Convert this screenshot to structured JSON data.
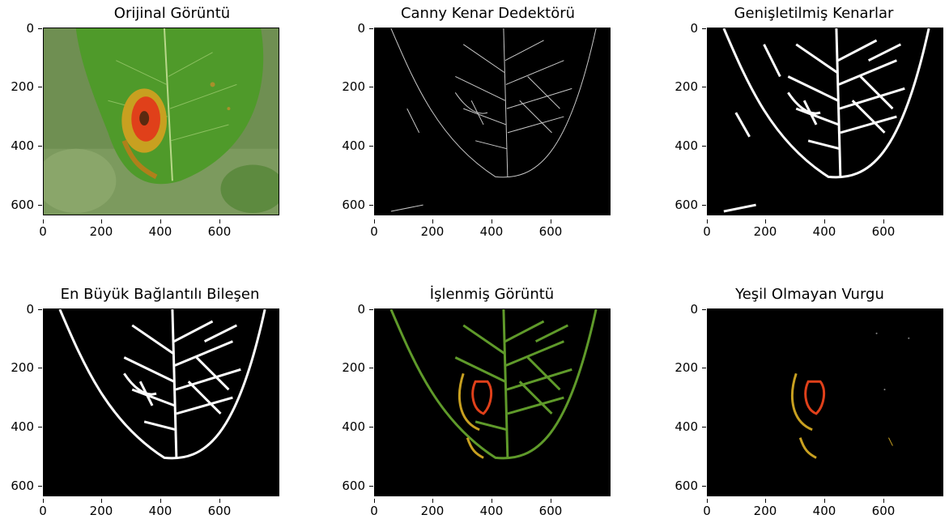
{
  "figure": {
    "panels": [
      {
        "title": "Orijinal Görüntü",
        "kind": "original"
      },
      {
        "title": "Canny Kenar Dedektörü",
        "kind": "canny"
      },
      {
        "title": "Genişletilmiş Kenarlar",
        "kind": "dilated"
      },
      {
        "title": "En Büyük Bağlantılı Bileşen",
        "kind": "component"
      },
      {
        "title": "İşlenmiş Görüntü",
        "kind": "processed"
      },
      {
        "title": "Yeşil Olmayan Vurgu",
        "kind": "nongreen"
      }
    ],
    "x_ticks": [
      "0",
      "200",
      "400",
      "600"
    ],
    "y_ticks": [
      "0",
      "200",
      "400",
      "600"
    ],
    "colors": {
      "leaf_green": "#4f9a2a",
      "leaf_dark": "#2f6d1b",
      "background_blur": "#6a8a4a",
      "lesion_red": "#e0401a",
      "lesion_yellow": "#c8a020",
      "edge_white": "#ffffff",
      "canvas_black": "#000000"
    }
  }
}
